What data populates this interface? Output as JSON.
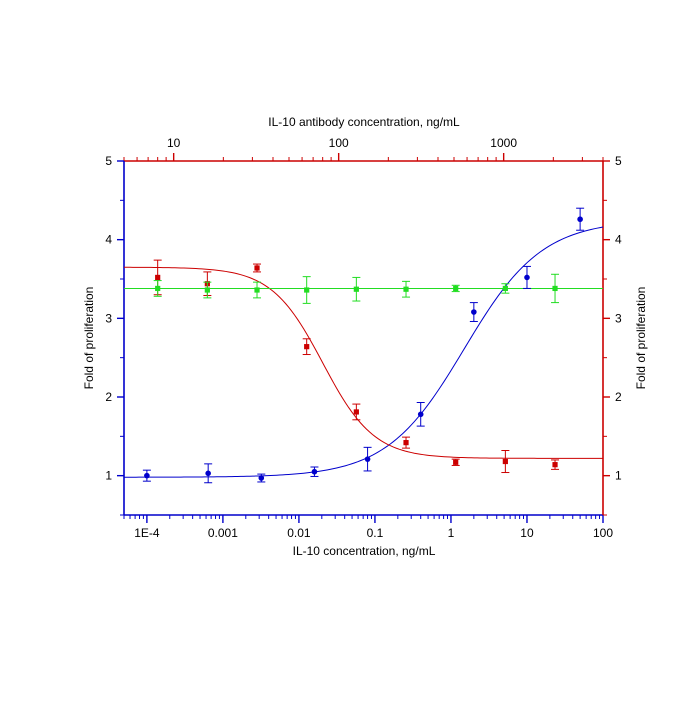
{
  "chart_data": {
    "type": "scatter",
    "title": "",
    "bottom_axis": {
      "label": "IL-10 concentration, ng/mL",
      "scale": "log",
      "range": [
        5e-05,
        100
      ],
      "ticks": [
        0.0001,
        0.001,
        0.01,
        0.1,
        1,
        10,
        100
      ],
      "tick_labels": [
        "1E-4",
        "0.001",
        "0.01",
        "0.1",
        "1",
        "10",
        "100"
      ],
      "color": "#0000cc"
    },
    "top_axis": {
      "label": "IL-10 antibody concentration, ng/mL",
      "scale": "log",
      "range": [
        5,
        4000
      ],
      "ticks": [
        10,
        100,
        1000
      ],
      "tick_labels": [
        "10",
        "100",
        "1000"
      ],
      "color": "#cc0000"
    },
    "left_axis": {
      "label": "Fold of proliferation",
      "range": [
        0.5,
        5
      ],
      "ticks": [
        1,
        2,
        3,
        4,
        5
      ],
      "tick_labels": [
        "1",
        "2",
        "3",
        "4",
        "5"
      ],
      "color": "#0000cc"
    },
    "right_axis": {
      "label": "Fold of proliferation",
      "range": [
        0.5,
        5
      ],
      "ticks": [
        1,
        2,
        3,
        4,
        5
      ],
      "tick_labels": [
        "1",
        "2",
        "3",
        "4",
        "5"
      ],
      "color": "#cc0000"
    },
    "grid": false,
    "legend": "none",
    "series": [
      {
        "axis": "bottom",
        "color": "#0000cc",
        "marker": "circle",
        "x": [
          0.0001,
          0.00064,
          0.0032,
          0.016,
          0.08,
          0.4,
          2,
          10,
          50
        ],
        "y": [
          1.0,
          1.03,
          0.97,
          1.05,
          1.21,
          1.78,
          3.08,
          3.52,
          4.26
        ],
        "err": [
          0.07,
          0.12,
          0.05,
          0.06,
          0.15,
          0.15,
          0.12,
          0.14,
          0.14
        ],
        "fit": {
          "bottom": 0.98,
          "top": 4.25,
          "ec50": 1.5,
          "hill": 0.85
        }
      },
      {
        "axis": "top",
        "color": "#cc0000",
        "marker": "square",
        "x": [
          8,
          16,
          32,
          64,
          128,
          256,
          512,
          1024,
          2048
        ],
        "y": [
          3.52,
          3.44,
          3.64,
          2.64,
          1.81,
          1.42,
          1.17,
          1.18,
          1.14
        ],
        "err": [
          0.22,
          0.15,
          0.05,
          0.1,
          0.1,
          0.07,
          0.04,
          0.14,
          0.06
        ],
        "fit": {
          "bottom": 1.22,
          "top": 3.65,
          "ic50": 80,
          "hill": 2.8
        }
      },
      {
        "axis": "top",
        "color": "#22dd22",
        "marker": "square",
        "x": [
          8,
          16,
          32,
          64,
          128,
          256,
          512,
          1024,
          2048
        ],
        "y": [
          3.38,
          3.36,
          3.36,
          3.36,
          3.37,
          3.37,
          3.38,
          3.38,
          3.38
        ],
        "err": [
          0.1,
          0.1,
          0.1,
          0.17,
          0.15,
          0.1,
          0.04,
          0.06,
          0.18
        ],
        "fit": {
          "constant": 3.38
        }
      }
    ]
  }
}
